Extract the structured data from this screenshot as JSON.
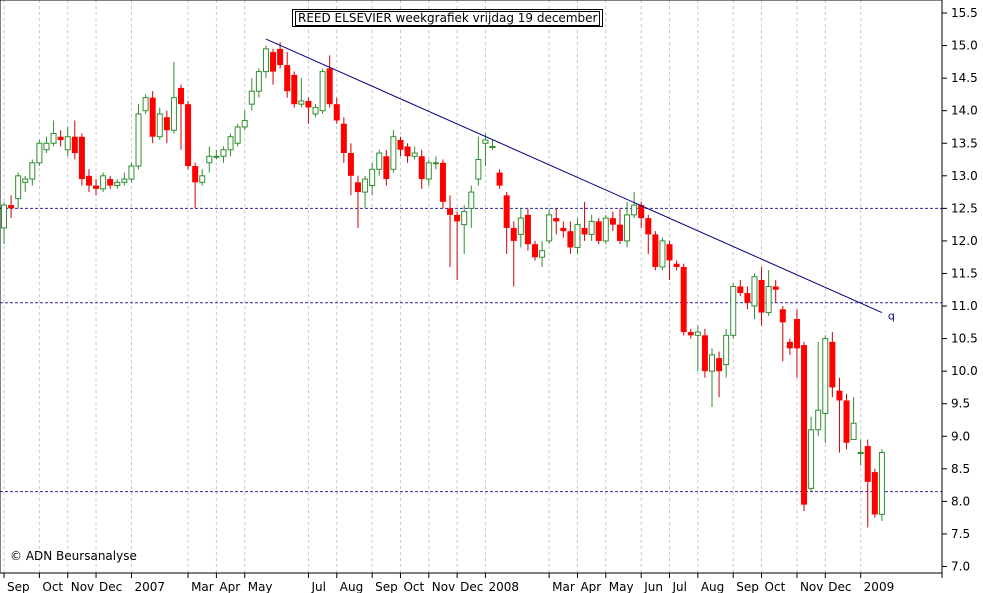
{
  "chart_data": {
    "type": "candlestick",
    "title": "REED ELSEVIER weekgrafiek vrijdag 19 december",
    "copyright": "© ADN Beursanalyse",
    "ylim": [
      6.9,
      15.7
    ],
    "y_ticks": [
      "7.0",
      "7.5",
      "8.0",
      "8.5",
      "9.0",
      "9.5",
      "10.0",
      "10.5",
      "11.0",
      "11.5",
      "12.0",
      "12.5",
      "13.0",
      "13.5",
      "14.0",
      "14.5",
      "15.0",
      "15.5"
    ],
    "x_labels": [
      {
        "label": "Sep",
        "week": 0
      },
      {
        "label": "Oct",
        "week": 5
      },
      {
        "label": "Nov",
        "week": 9
      },
      {
        "label": "Dec",
        "week": 13
      },
      {
        "label": "2007",
        "week": 18
      },
      {
        "label": "Mar",
        "week": 26
      },
      {
        "label": "Apr",
        "week": 30
      },
      {
        "label": "May",
        "week": 34
      },
      {
        "label": "Jul",
        "week": 43
      },
      {
        "label": "Aug",
        "week": 47
      },
      {
        "label": "Sep",
        "week": 52
      },
      {
        "label": "Oct",
        "week": 56
      },
      {
        "label": "Nov",
        "week": 60
      },
      {
        "label": "Dec",
        "week": 64
      },
      {
        "label": "2008",
        "week": 68
      },
      {
        "label": "Mar",
        "week": 77
      },
      {
        "label": "Apr",
        "week": 81
      },
      {
        "label": "May",
        "week": 85
      },
      {
        "label": "Jun",
        "week": 90
      },
      {
        "label": "Jul",
        "week": 94
      },
      {
        "label": "Aug",
        "week": 98
      },
      {
        "label": "Sep",
        "week": 103
      },
      {
        "label": "Oct",
        "week": 107
      },
      {
        "label": "Nov",
        "week": 112
      },
      {
        "label": "Dec",
        "week": 116
      },
      {
        "label": "2009",
        "week": 121
      }
    ],
    "horizontal_lines": [
      12.5,
      11.05,
      8.15
    ],
    "trendline": {
      "from": {
        "week": 37,
        "value": 15.1
      },
      "to": {
        "week": 124,
        "value": 10.9
      },
      "label": "q"
    },
    "candles": [
      [
        12.2,
        12.55,
        12.6,
        11.95
      ],
      [
        12.55,
        12.5,
        12.7,
        12.35
      ],
      [
        12.65,
        13.0,
        13.05,
        12.5
      ],
      [
        12.9,
        12.95,
        13.0,
        12.75
      ],
      [
        12.95,
        13.2,
        13.25,
        12.85
      ],
      [
        13.2,
        13.5,
        13.55,
        13.15
      ],
      [
        13.4,
        13.5,
        13.6,
        13.35
      ],
      [
        13.5,
        13.65,
        13.85,
        13.45
      ],
      [
        13.6,
        13.55,
        13.7,
        13.45
      ],
      [
        13.4,
        13.6,
        13.75,
        13.3
      ],
      [
        13.6,
        13.35,
        13.85,
        13.25
      ],
      [
        13.6,
        12.95,
        13.65,
        12.85
      ],
      [
        13.0,
        12.85,
        13.1,
        12.75
      ],
      [
        12.85,
        12.8,
        12.95,
        12.7
      ],
      [
        12.8,
        13.0,
        13.05,
        12.75
      ],
      [
        12.95,
        12.85,
        13.0,
        12.8
      ],
      [
        12.85,
        12.9,
        12.95,
        12.8
      ],
      [
        12.9,
        12.95,
        13.05,
        12.85
      ],
      [
        12.95,
        13.15,
        13.2,
        12.9
      ],
      [
        13.15,
        13.95,
        14.1,
        13.1
      ],
      [
        14.0,
        14.2,
        14.25,
        13.95
      ],
      [
        14.2,
        13.6,
        14.3,
        13.5
      ],
      [
        13.6,
        13.95,
        14.05,
        13.55
      ],
      [
        13.9,
        13.7,
        14.0,
        13.5
      ],
      [
        13.7,
        14.2,
        14.75,
        13.65
      ],
      [
        14.35,
        14.1,
        14.4,
        13.4
      ],
      [
        14.1,
        13.15,
        14.15,
        13.1
      ],
      [
        13.15,
        12.9,
        13.2,
        12.5
      ],
      [
        12.9,
        13.0,
        13.1,
        12.85
      ],
      [
        13.2,
        13.3,
        13.45,
        13.05
      ],
      [
        13.3,
        13.3,
        13.4,
        13.25
      ],
      [
        13.3,
        13.4,
        13.45,
        13.2
      ],
      [
        13.4,
        13.6,
        13.65,
        13.3
      ],
      [
        13.5,
        13.75,
        13.8,
        13.45
      ],
      [
        13.75,
        13.85,
        14.0,
        13.7
      ],
      [
        14.1,
        14.3,
        14.5,
        14.0
      ],
      [
        14.3,
        14.6,
        14.65,
        14.2
      ],
      [
        14.6,
        14.95,
        15.0,
        14.5
      ],
      [
        14.9,
        14.6,
        14.95,
        14.4
      ],
      [
        14.95,
        14.7,
        15.05,
        14.65
      ],
      [
        14.7,
        14.3,
        14.9,
        14.2
      ],
      [
        14.55,
        14.1,
        14.6,
        14.05
      ],
      [
        14.1,
        14.15,
        14.5,
        14.05
      ],
      [
        14.15,
        14.05,
        14.2,
        13.8
      ],
      [
        13.95,
        14.05,
        14.1,
        13.9
      ],
      [
        14.0,
        14.6,
        14.65,
        13.95
      ],
      [
        14.65,
        14.1,
        14.85,
        14.05
      ],
      [
        14.1,
        13.85,
        14.2,
        13.8
      ],
      [
        13.8,
        13.35,
        13.9,
        13.2
      ],
      [
        13.35,
        13.0,
        13.5,
        12.7
      ],
      [
        12.9,
        12.75,
        13.0,
        12.2
      ],
      [
        12.75,
        12.95,
        13.0,
        12.5
      ],
      [
        12.85,
        13.1,
        13.2,
        12.7
      ],
      [
        13.1,
        13.35,
        13.4,
        13.0
      ],
      [
        13.3,
        12.95,
        13.4,
        12.85
      ],
      [
        13.1,
        13.6,
        13.7,
        13.05
      ],
      [
        13.55,
        13.4,
        13.6,
        13.3
      ],
      [
        13.45,
        13.3,
        13.5,
        13.2
      ],
      [
        13.3,
        13.35,
        13.45,
        13.25
      ],
      [
        13.3,
        12.95,
        13.4,
        12.8
      ],
      [
        12.95,
        13.2,
        13.25,
        12.85
      ],
      [
        13.2,
        13.2,
        13.3,
        13.1
      ],
      [
        13.2,
        12.6,
        13.25,
        12.5
      ],
      [
        12.5,
        12.4,
        12.7,
        11.6
      ],
      [
        12.4,
        12.3,
        12.45,
        11.4
      ],
      [
        12.25,
        12.45,
        12.55,
        11.8
      ],
      [
        12.5,
        12.75,
        12.85,
        12.2
      ],
      [
        12.95,
        13.25,
        13.6,
        12.85
      ],
      [
        13.5,
        13.55,
        13.65,
        13.15
      ],
      [
        13.45,
        13.45,
        13.55,
        13.4
      ],
      [
        13.05,
        12.85,
        13.1,
        12.8
      ],
      [
        12.7,
        12.2,
        12.75,
        11.8
      ],
      [
        12.2,
        12.0,
        12.3,
        11.3
      ],
      [
        12.1,
        12.35,
        12.5,
        11.9
      ],
      [
        12.4,
        11.95,
        12.5,
        11.85
      ],
      [
        11.95,
        11.75,
        12.0,
        11.7
      ],
      [
        11.75,
        11.85,
        12.0,
        11.6
      ],
      [
        12.0,
        12.4,
        12.5,
        11.95
      ],
      [
        12.35,
        12.3,
        12.5,
        12.1
      ],
      [
        12.2,
        12.15,
        12.3,
        12.05
      ],
      [
        12.15,
        11.9,
        12.3,
        11.8
      ],
      [
        11.9,
        12.25,
        12.35,
        11.8
      ],
      [
        12.2,
        12.1,
        12.6,
        12.0
      ],
      [
        12.1,
        12.3,
        12.4,
        12.0
      ],
      [
        12.3,
        12.0,
        12.35,
        11.95
      ],
      [
        12.0,
        12.35,
        12.4,
        11.95
      ],
      [
        12.35,
        12.25,
        12.45,
        12.15
      ],
      [
        12.25,
        12.0,
        12.5,
        11.95
      ],
      [
        12.0,
        12.4,
        12.6,
        11.9
      ],
      [
        12.4,
        12.55,
        12.75,
        12.35
      ],
      [
        12.55,
        12.35,
        12.6,
        12.2
      ],
      [
        12.35,
        12.1,
        12.4,
        11.8
      ],
      [
        12.1,
        11.6,
        12.15,
        11.55
      ],
      [
        11.6,
        12.0,
        12.05,
        11.55
      ],
      [
        11.95,
        11.7,
        12.0,
        11.4
      ],
      [
        11.65,
        11.6,
        11.7,
        11.55
      ],
      [
        11.6,
        10.6,
        11.65,
        10.55
      ],
      [
        10.6,
        10.55,
        10.65,
        10.5
      ],
      [
        10.55,
        10.6,
        10.7,
        10.0
      ],
      [
        10.55,
        10.0,
        10.65,
        9.9
      ],
      [
        10.0,
        10.25,
        10.35,
        9.45
      ],
      [
        10.2,
        10.0,
        10.3,
        9.6
      ],
      [
        10.1,
        10.55,
        10.65,
        9.9
      ],
      [
        10.55,
        11.3,
        11.35,
        10.5
      ],
      [
        11.3,
        11.2,
        11.4,
        11.15
      ],
      [
        11.2,
        11.05,
        11.3,
        10.95
      ],
      [
        11.0,
        11.45,
        11.5,
        10.8
      ],
      [
        11.4,
        10.9,
        11.6,
        10.7
      ],
      [
        10.9,
        11.3,
        11.55,
        10.85
      ],
      [
        11.3,
        11.25,
        11.4,
        11.05
      ],
      [
        10.95,
        10.75,
        11.0,
        10.15
      ],
      [
        10.45,
        10.35,
        10.5,
        10.25
      ],
      [
        10.8,
        10.35,
        10.95,
        9.9
      ],
      [
        10.4,
        7.95,
        10.45,
        7.85
      ],
      [
        8.2,
        9.1,
        9.3,
        8.15
      ],
      [
        9.1,
        9.4,
        10.45,
        9.0
      ],
      [
        9.35,
        10.5,
        10.55,
        8.9
      ],
      [
        10.45,
        9.75,
        10.6,
        9.6
      ],
      [
        9.7,
        9.55,
        9.9,
        8.75
      ],
      [
        9.55,
        8.9,
        9.65,
        8.8
      ],
      [
        8.95,
        9.2,
        9.6,
        8.95
      ],
      [
        8.75,
        8.75,
        8.95,
        8.55
      ],
      [
        8.85,
        8.3,
        8.95,
        7.6
      ],
      [
        8.45,
        7.8,
        8.5,
        7.75
      ],
      [
        7.8,
        8.75,
        8.8,
        7.7
      ]
    ]
  }
}
